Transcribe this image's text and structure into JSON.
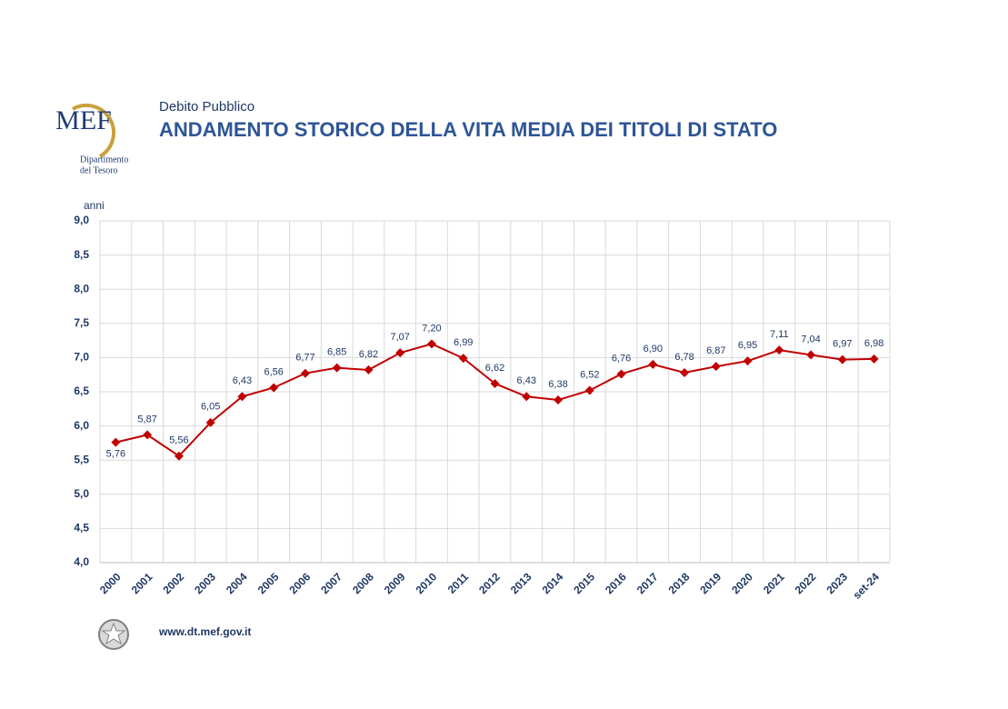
{
  "header": {
    "logo": "MEF",
    "department": [
      "Dipartimento",
      "del Tesoro"
    ],
    "section": "Debito Pubblico"
  },
  "footer": {
    "url": "www.dt.mef.gov.it"
  },
  "chart_data": {
    "type": "line",
    "title": "ANDAMENTO STORICO DELLA VITA MEDIA DEI TITOLI DI STATO",
    "y_label": "anni",
    "categories": [
      "2000",
      "2001",
      "2002",
      "2003",
      "2004",
      "2005",
      "2006",
      "2007",
      "2008",
      "2009",
      "2010",
      "2011",
      "2012",
      "2013",
      "2014",
      "2015",
      "2016",
      "2017",
      "2018",
      "2019",
      "2020",
      "2021",
      "2022",
      "2023",
      "set-24"
    ],
    "values": [
      5.76,
      5.87,
      5.56,
      6.05,
      6.43,
      6.56,
      6.77,
      6.85,
      6.82,
      7.07,
      7.2,
      6.99,
      6.62,
      6.43,
      6.38,
      6.52,
      6.76,
      6.9,
      6.78,
      6.87,
      6.95,
      7.11,
      7.04,
      6.97,
      6.98
    ],
    "value_labels": [
      "5,76",
      "5,87",
      "5,56",
      "6,05",
      "6,43",
      "6,56",
      "6,77",
      "6,85",
      "6,82",
      "7,07",
      "7,20",
      "6,99",
      "6,62",
      "6,43",
      "6,38",
      "6,52",
      "6,76",
      "6,90",
      "6,78",
      "6,87",
      "6,95",
      "7,11",
      "7,04",
      "6,97",
      "6,98"
    ],
    "color": "#c00000",
    "ylim": [
      4,
      9
    ],
    "yticks": [
      {
        "value": 4,
        "label": "4,0"
      },
      {
        "value": 4.5,
        "label": "4,5"
      },
      {
        "value": 5,
        "label": "5,0"
      },
      {
        "value": 5.5,
        "label": "5,5"
      },
      {
        "value": 6,
        "label": "6,0"
      },
      {
        "value": 6.5,
        "label": "6,5"
      },
      {
        "value": 7,
        "label": "7,0"
      },
      {
        "value": 7.5,
        "label": "7,5"
      },
      {
        "value": 8,
        "label": "8,0"
      },
      {
        "value": 8.5,
        "label": "8,5"
      },
      {
        "value": 9,
        "label": "9,0"
      }
    ],
    "grid": true
  }
}
